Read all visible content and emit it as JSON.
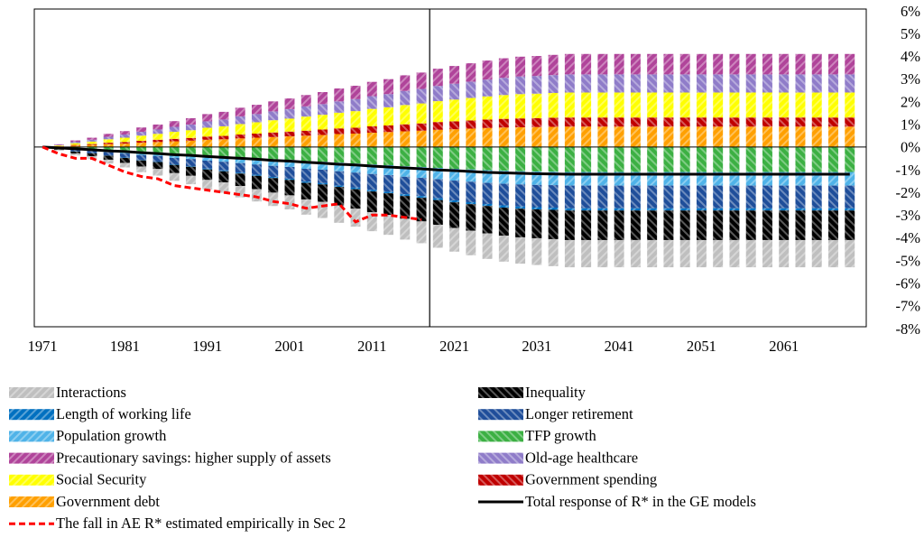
{
  "chart_data": {
    "type": "bar",
    "stacked": true,
    "x": [
      1971,
      1973,
      1975,
      1977,
      1979,
      1981,
      1983,
      1985,
      1987,
      1989,
      1991,
      1993,
      1995,
      1997,
      1999,
      2001,
      2003,
      2005,
      2007,
      2009,
      2011,
      2013,
      2015,
      2017,
      2019,
      2021,
      2023,
      2025,
      2027,
      2029,
      2031,
      2033,
      2035,
      2037,
      2039,
      2041,
      2043,
      2045,
      2047,
      2049,
      2051,
      2053,
      2055,
      2057,
      2059,
      2061,
      2063,
      2065,
      2067,
      2069
    ],
    "xlim": [
      1970,
      2071
    ],
    "xticks": [
      1971,
      1981,
      1991,
      2001,
      2011,
      2021,
      2031,
      2041,
      2051,
      2061
    ],
    "ylim": [
      -8,
      6
    ],
    "yticks": [
      {
        "value": 6,
        "label": "6%"
      },
      {
        "value": 5,
        "label": "5%"
      },
      {
        "value": 4,
        "label": "4%"
      },
      {
        "value": 3,
        "label": "3%"
      },
      {
        "value": 2,
        "label": "2%"
      },
      {
        "value": 1,
        "label": "1%"
      },
      {
        "value": 0,
        "label": "0%"
      },
      {
        "value": -1,
        "label": "-1%"
      },
      {
        "value": -2,
        "label": "-2%"
      },
      {
        "value": -3,
        "label": "-3%"
      },
      {
        "value": -4,
        "label": "-4%"
      },
      {
        "value": -5,
        "label": "-5%"
      },
      {
        "value": -6,
        "label": "-6%"
      },
      {
        "value": -7,
        "label": "-7%"
      },
      {
        "value": -8,
        "label": "-8%"
      }
    ],
    "vline_x": 2018,
    "series": [
      {
        "name": "Interactions",
        "color": "#bfbfbf",
        "values": [
          0,
          -0.04,
          -0.08,
          -0.12,
          -0.17,
          -0.2,
          -0.25,
          -0.29,
          -0.34,
          -0.37,
          -0.42,
          -0.46,
          -0.5,
          -0.54,
          -0.59,
          -0.62,
          -0.67,
          -0.71,
          -0.76,
          -0.79,
          -0.84,
          -0.88,
          -0.92,
          -0.96,
          -1.01,
          -1.04,
          -1.08,
          -1.12,
          -1.14,
          -1.16,
          -1.18,
          -1.19,
          -1.2,
          -1.2,
          -1.2,
          -1.2,
          -1.2,
          -1.2,
          -1.2,
          -1.2,
          -1.2,
          -1.2,
          -1.2,
          -1.2,
          -1.2,
          -1.2,
          -1.2,
          -1.2,
          -1.2,
          -1.2
        ]
      },
      {
        "name": "Inequality",
        "color": "#000000",
        "values": [
          0,
          -0.04,
          -0.09,
          -0.13,
          -0.18,
          -0.22,
          -0.27,
          -0.31,
          -0.36,
          -0.4,
          -0.46,
          -0.49,
          -0.55,
          -0.59,
          -0.64,
          -0.68,
          -0.73,
          -0.77,
          -0.82,
          -0.86,
          -0.91,
          -0.95,
          -1,
          -1.04,
          -1.09,
          -1.13,
          -1.17,
          -1.21,
          -1.24,
          -1.26,
          -1.27,
          -1.29,
          -1.3,
          -1.3,
          -1.3,
          -1.3,
          -1.3,
          -1.3,
          -1.3,
          -1.3,
          -1.3,
          -1.3,
          -1.3,
          -1.3,
          -1.3,
          -1.3,
          -1.3,
          -1.3,
          -1.3,
          -1.3
        ]
      },
      {
        "name": "Length of working life",
        "color": "#0070c0",
        "values": [
          0,
          0,
          -0.01,
          -0.01,
          -0.01,
          -0.02,
          -0.02,
          -0.02,
          -0.03,
          -0.03,
          -0.04,
          -0.04,
          -0.04,
          -0.05,
          -0.05,
          -0.05,
          -0.06,
          -0.06,
          -0.06,
          -0.07,
          -0.07,
          -0.07,
          -0.08,
          -0.08,
          -0.08,
          -0.09,
          -0.09,
          -0.09,
          -0.1,
          -0.1,
          -0.1,
          -0.1,
          -0.1,
          -0.1,
          -0.1,
          -0.1,
          -0.1,
          -0.1,
          -0.1,
          -0.1,
          -0.1,
          -0.1,
          -0.1,
          -0.1,
          -0.1,
          -0.1,
          -0.1,
          -0.1,
          -0.1,
          -0.1
        ]
      },
      {
        "name": "Longer retirement",
        "color": "#1f4e9a",
        "values": [
          0,
          -0.03,
          -0.07,
          -0.1,
          -0.14,
          -0.17,
          -0.21,
          -0.24,
          -0.28,
          -0.31,
          -0.35,
          -0.38,
          -0.42,
          -0.45,
          -0.49,
          -0.52,
          -0.56,
          -0.59,
          -0.63,
          -0.66,
          -0.7,
          -0.73,
          -0.77,
          -0.8,
          -0.84,
          -0.87,
          -0.9,
          -0.93,
          -0.95,
          -0.97,
          -0.98,
          -0.99,
          -1,
          -1,
          -1,
          -1,
          -1,
          -1,
          -1,
          -1,
          -1,
          -1,
          -1,
          -1,
          -1,
          -1,
          -1,
          -1,
          -1,
          -1
        ]
      },
      {
        "name": "Population growth",
        "color": "#4fb3e8",
        "values": [
          0,
          -0.02,
          -0.04,
          -0.06,
          -0.08,
          -0.1,
          -0.13,
          -0.14,
          -0.17,
          -0.19,
          -0.21,
          -0.23,
          -0.25,
          -0.27,
          -0.29,
          -0.31,
          -0.34,
          -0.35,
          -0.38,
          -0.4,
          -0.42,
          -0.44,
          -0.46,
          -0.48,
          -0.5,
          -0.52,
          -0.54,
          -0.56,
          -0.57,
          -0.58,
          -0.59,
          -0.59,
          -0.6,
          -0.6,
          -0.6,
          -0.6,
          -0.6,
          -0.6,
          -0.6,
          -0.6,
          -0.6,
          -0.6,
          -0.6,
          -0.6,
          -0.6,
          -0.6,
          -0.6,
          -0.6,
          -0.6,
          -0.6
        ]
      },
      {
        "name": "TFP growth",
        "color": "#3cb043",
        "values": [
          0,
          -0.03,
          -0.08,
          -0.11,
          -0.15,
          -0.19,
          -0.23,
          -0.26,
          -0.31,
          -0.34,
          -0.39,
          -0.42,
          -0.46,
          -0.5,
          -0.54,
          -0.57,
          -0.62,
          -0.65,
          -0.69,
          -0.73,
          -0.77,
          -0.8,
          -0.85,
          -0.88,
          -0.92,
          -0.96,
          -0.99,
          -1.02,
          -1.05,
          -1.07,
          -1.08,
          -1.09,
          -1.1,
          -1.1,
          -1.1,
          -1.1,
          -1.1,
          -1.1,
          -1.1,
          -1.1,
          -1.1,
          -1.1,
          -1.1,
          -1.1,
          -1.1,
          -1.1,
          -1.1,
          -1.1,
          -1.1,
          -1.1
        ]
      },
      {
        "name": "Precautionary savings: higher supply of assets",
        "color": "#b0449a",
        "values": [
          0,
          0.03,
          0.06,
          0.09,
          0.13,
          0.15,
          0.19,
          0.22,
          0.25,
          0.28,
          0.32,
          0.34,
          0.38,
          0.41,
          0.44,
          0.47,
          0.5,
          0.53,
          0.57,
          0.59,
          0.63,
          0.66,
          0.69,
          0.72,
          0.76,
          0.78,
          0.81,
          0.84,
          0.86,
          0.87,
          0.88,
          0.89,
          0.9,
          0.9,
          0.9,
          0.9,
          0.9,
          0.9,
          0.9,
          0.9,
          0.9,
          0.9,
          0.9,
          0.9,
          0.9,
          0.9,
          0.9,
          0.9,
          0.9,
          0.9
        ]
      },
      {
        "name": "Old-age healthcare",
        "color": "#8f7cc9",
        "values": [
          0,
          0.02,
          0.06,
          0.08,
          0.11,
          0.14,
          0.17,
          0.19,
          0.22,
          0.25,
          0.28,
          0.3,
          0.34,
          0.36,
          0.39,
          0.42,
          0.45,
          0.47,
          0.5,
          0.53,
          0.56,
          0.58,
          0.62,
          0.64,
          0.67,
          0.7,
          0.72,
          0.74,
          0.76,
          0.78,
          0.78,
          0.79,
          0.8,
          0.8,
          0.8,
          0.8,
          0.8,
          0.8,
          0.8,
          0.8,
          0.8,
          0.8,
          0.8,
          0.8,
          0.8,
          0.8,
          0.8,
          0.8,
          0.8,
          0.8
        ]
      },
      {
        "name": "Social Security",
        "color": "#ffff00",
        "values": [
          0,
          0.03,
          0.08,
          0.11,
          0.15,
          0.19,
          0.23,
          0.26,
          0.31,
          0.34,
          0.39,
          0.42,
          0.46,
          0.5,
          0.54,
          0.57,
          0.62,
          0.65,
          0.69,
          0.73,
          0.77,
          0.8,
          0.85,
          0.88,
          0.92,
          0.96,
          0.99,
          1.02,
          1.05,
          1.07,
          1.08,
          1.09,
          1.1,
          1.1,
          1.1,
          1.1,
          1.1,
          1.1,
          1.1,
          1.1,
          1.1,
          1.1,
          1.1,
          1.1,
          1.1,
          1.1,
          1.1,
          1.1,
          1.1,
          1.1
        ]
      },
      {
        "name": "Government spending",
        "color": "#c00000",
        "values": [
          0,
          0.01,
          0.03,
          0.04,
          0.06,
          0.07,
          0.08,
          0.1,
          0.11,
          0.12,
          0.14,
          0.15,
          0.17,
          0.18,
          0.2,
          0.21,
          0.22,
          0.24,
          0.25,
          0.26,
          0.28,
          0.29,
          0.31,
          0.32,
          0.34,
          0.35,
          0.36,
          0.37,
          0.38,
          0.39,
          0.39,
          0.4,
          0.4,
          0.4,
          0.4,
          0.4,
          0.4,
          0.4,
          0.4,
          0.4,
          0.4,
          0.4,
          0.4,
          0.4,
          0.4,
          0.4,
          0.4,
          0.4,
          0.4,
          0.4
        ]
      },
      {
        "name": "Government debt",
        "color": "#ffa000",
        "values": [
          0,
          0.03,
          0.06,
          0.09,
          0.13,
          0.15,
          0.19,
          0.22,
          0.25,
          0.28,
          0.32,
          0.34,
          0.38,
          0.41,
          0.44,
          0.47,
          0.5,
          0.53,
          0.57,
          0.59,
          0.63,
          0.66,
          0.69,
          0.72,
          0.76,
          0.78,
          0.81,
          0.84,
          0.86,
          0.87,
          0.88,
          0.89,
          0.9,
          0.9,
          0.9,
          0.9,
          0.9,
          0.9,
          0.9,
          0.9,
          0.9,
          0.9,
          0.9,
          0.9,
          0.9,
          0.9,
          0.9,
          0.9,
          0.9,
          0.9
        ]
      },
      {
        "name": "Total response of R* in the GE models",
        "type": "line",
        "color": "#000000",
        "values": [
          0,
          -0.04,
          -0.08,
          -0.12,
          -0.17,
          -0.2,
          -0.25,
          -0.29,
          -0.34,
          -0.37,
          -0.42,
          -0.46,
          -0.5,
          -0.54,
          -0.59,
          -0.62,
          -0.67,
          -0.71,
          -0.76,
          -0.79,
          -0.84,
          -0.88,
          -0.92,
          -0.96,
          -1.01,
          -1.04,
          -1.08,
          -1.12,
          -1.14,
          -1.16,
          -1.18,
          -1.19,
          -1.2,
          -1.2,
          -1.2,
          -1.2,
          -1.2,
          -1.2,
          -1.2,
          -1.2,
          -1.2,
          -1.2,
          -1.2,
          -1.2,
          -1.2,
          -1.2,
          -1.2,
          -1.2,
          -1.2,
          -1.2
        ]
      },
      {
        "name": "The fall in AE R* estimated empirically in Sec 2",
        "type": "line",
        "dashed": true,
        "color": "#ff0000",
        "values": [
          0,
          -0.3,
          -0.5,
          -0.5,
          -0.8,
          -1.1,
          -1.3,
          -1.4,
          -1.7,
          -1.8,
          -1.9,
          -2.0,
          -2.1,
          -2.2,
          -2.4,
          -2.5,
          -2.7,
          -2.6,
          -2.5,
          -3.3,
          -3.0,
          -3.0,
          -3.1,
          -3.2,
          null,
          null,
          null,
          null,
          null,
          null,
          null,
          null,
          null,
          null,
          null,
          null,
          null,
          null,
          null,
          null,
          null,
          null,
          null,
          null,
          null,
          null,
          null,
          null,
          null,
          null
        ]
      }
    ]
  }
}
